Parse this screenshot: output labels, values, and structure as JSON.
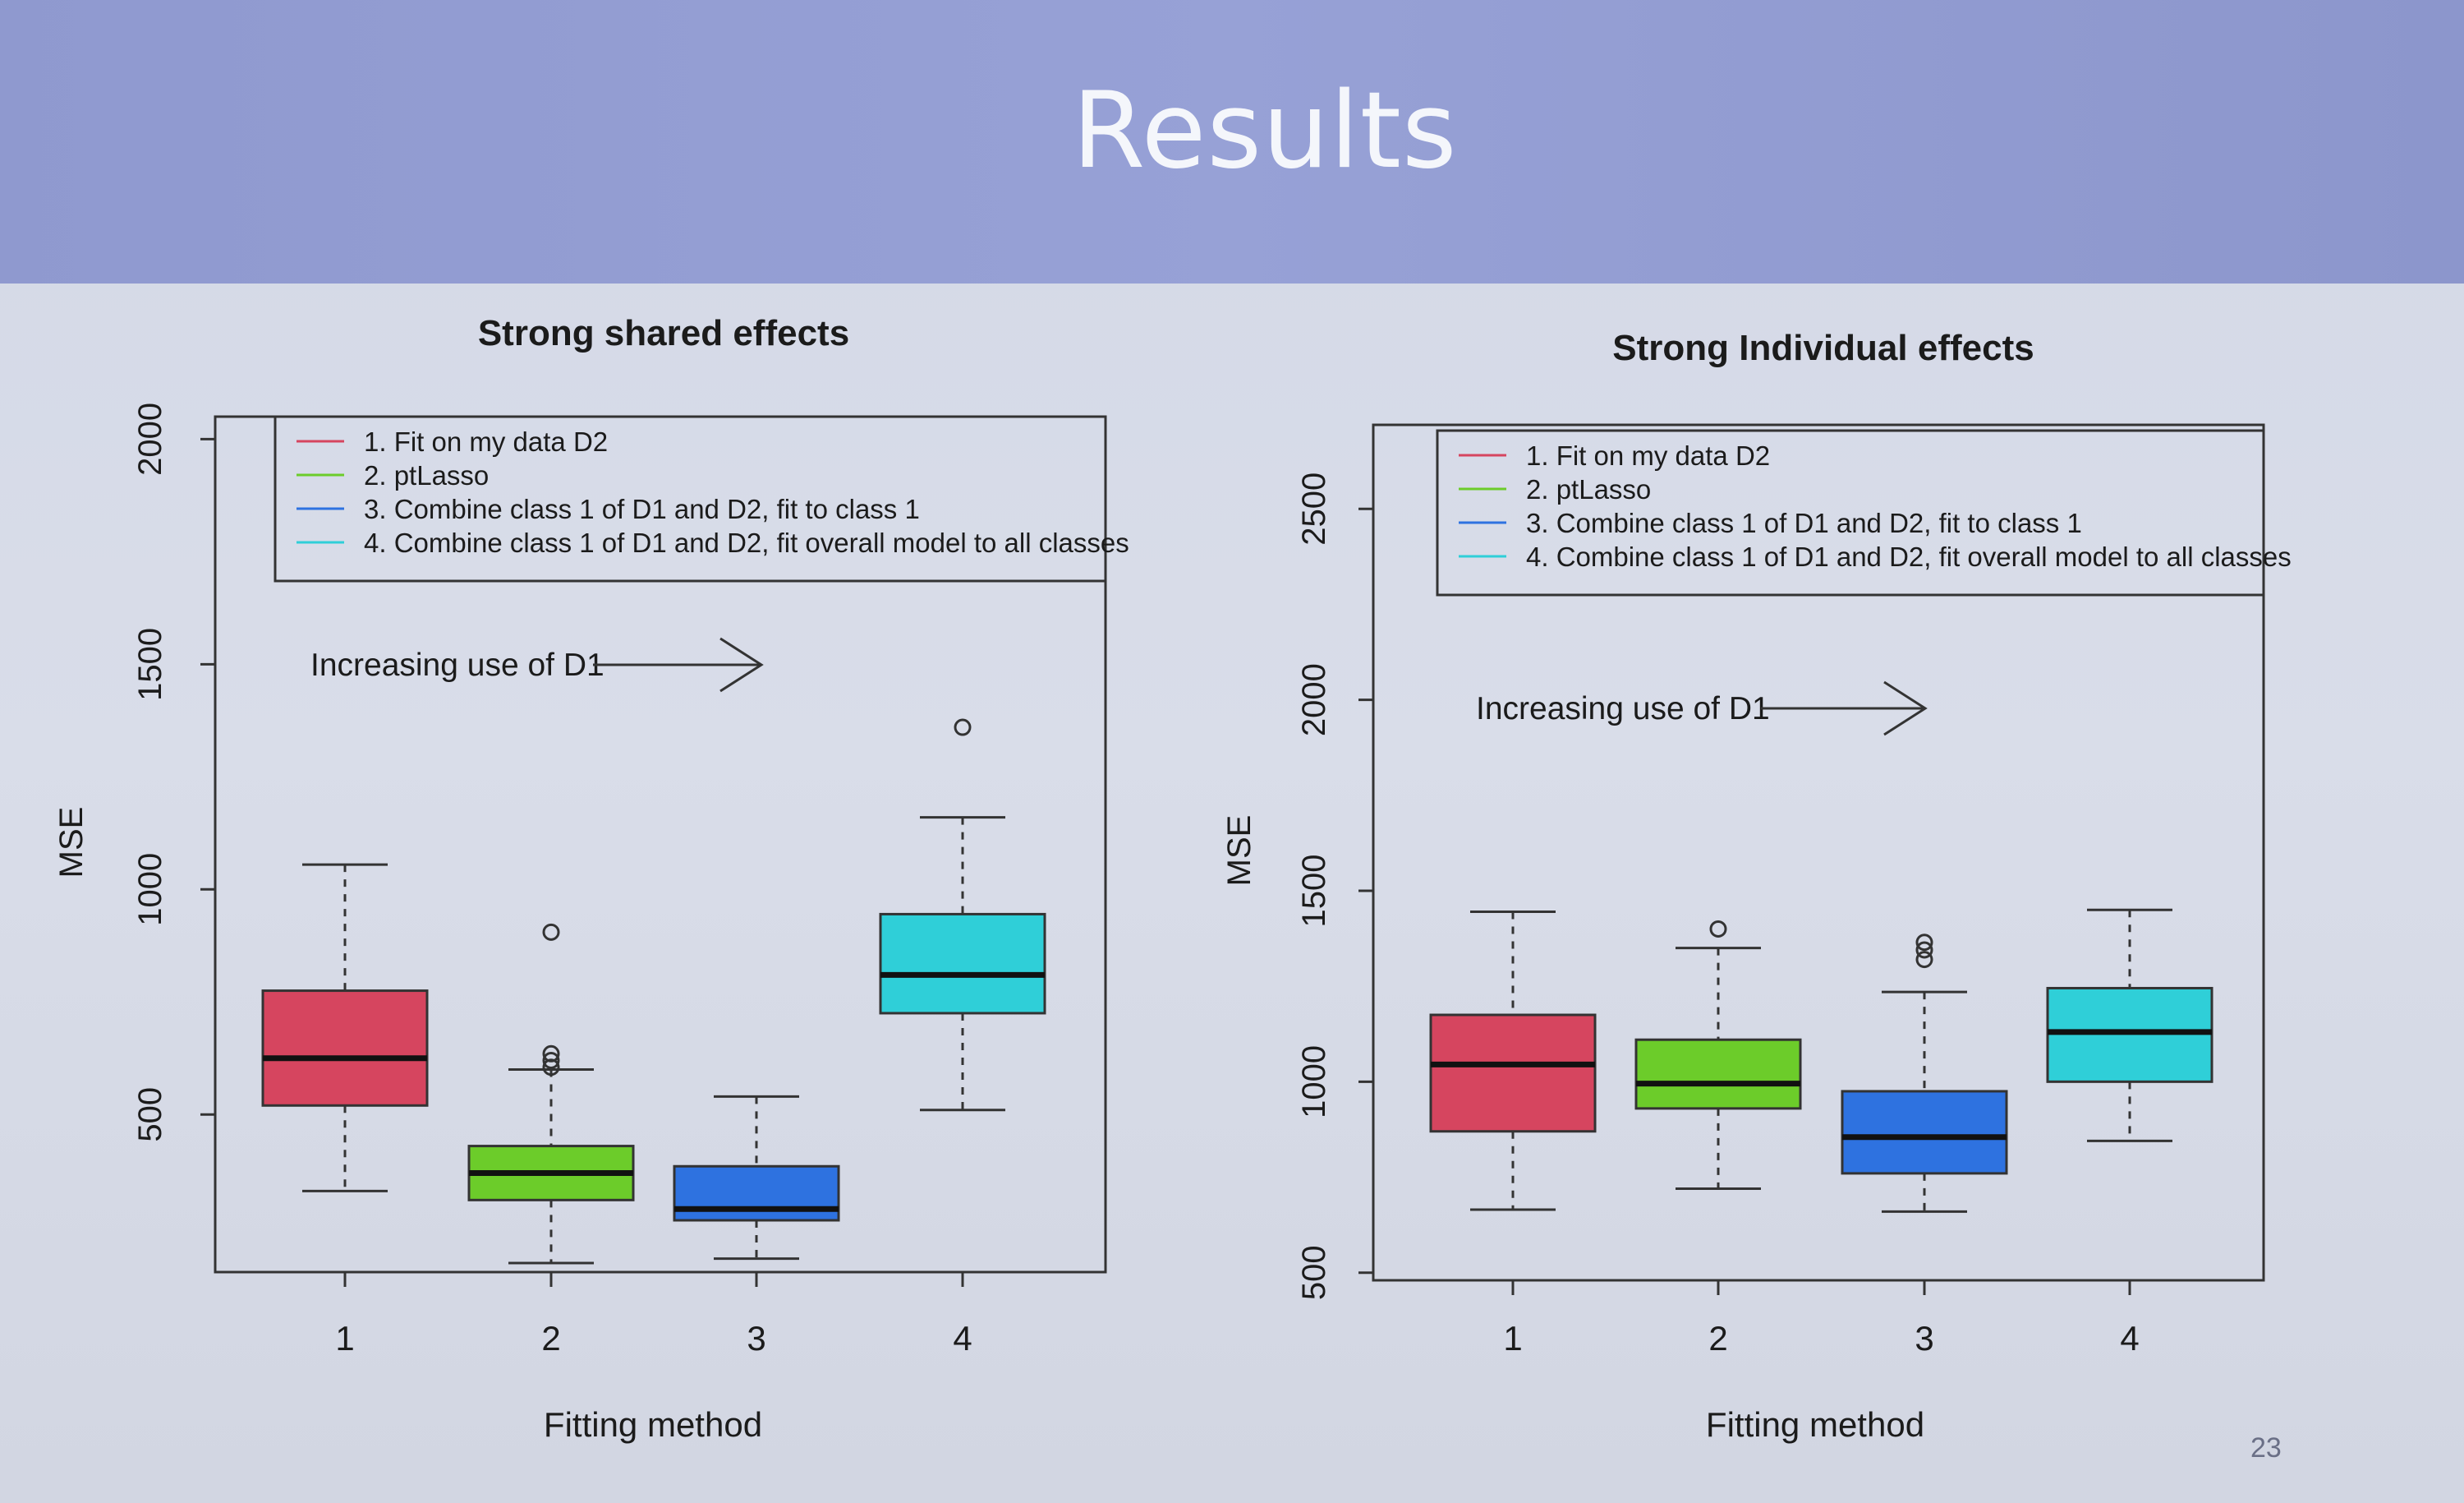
{
  "slide": {
    "title": "Results",
    "page_number": "23"
  },
  "chart_data": [
    {
      "type": "box",
      "title": "Strong shared effects",
      "xlabel": "Fitting method",
      "ylabel": "MSE",
      "categories": [
        "1",
        "2",
        "3",
        "4"
      ],
      "yticks": [
        500,
        1000,
        1500,
        2000
      ],
      "ylim": [
        150,
        2050
      ],
      "annotation": "Increasing use of D1",
      "legend": {
        "placement": "top-right",
        "entries": [
          {
            "label": "1. Fit on my data D2",
            "color": "#d6455f"
          },
          {
            "label": "2. ptLasso",
            "color": "#6ccc2a"
          },
          {
            "label": "3. Combine class 1 of D1 and D2, fit to class 1",
            "color": "#2e72e0"
          },
          {
            "label": "4. Combine class 1 of D1 and D2, fit overall model to all classes",
            "color": "#2fcfd8"
          }
        ]
      },
      "boxes": [
        {
          "x": "1",
          "color": "#d6455f",
          "whisker_low": 330,
          "q1": 520,
          "median": 625,
          "q3": 775,
          "whisker_high": 1055,
          "outliers": []
        },
        {
          "x": "2",
          "color": "#6ccc2a",
          "whisker_low": 170,
          "q1": 310,
          "median": 370,
          "q3": 430,
          "whisker_high": 600,
          "outliers": [
            605,
            620,
            635,
            905
          ]
        },
        {
          "x": "3",
          "color": "#2e72e0",
          "whisker_low": 180,
          "q1": 265,
          "median": 290,
          "q3": 385,
          "whisker_high": 540,
          "outliers": []
        },
        {
          "x": "4",
          "color": "#2fcfd8",
          "whisker_low": 510,
          "q1": 725,
          "median": 810,
          "q3": 945,
          "whisker_high": 1160,
          "outliers": [
            1360
          ]
        }
      ]
    },
    {
      "type": "box",
      "title": "Strong Individual effects",
      "xlabel": "Fitting method",
      "ylabel": "MSE",
      "categories": [
        "1",
        "2",
        "3",
        "4"
      ],
      "yticks": [
        500,
        1000,
        1500,
        2000,
        2500
      ],
      "ylim": [
        480,
        2720
      ],
      "annotation": "Increasing use of D1",
      "legend": {
        "placement": "top-right",
        "entries": [
          {
            "label": "1. Fit on my data D2",
            "color": "#d6455f"
          },
          {
            "label": "2. ptLasso",
            "color": "#6ccc2a"
          },
          {
            "label": "3. Combine class 1 of D1 and D2, fit to class 1",
            "color": "#2e72e0"
          },
          {
            "label": "4. Combine class 1 of D1 and D2, fit overall model to all classes",
            "color": "#2fcfd8"
          }
        ]
      },
      "boxes": [
        {
          "x": "1",
          "color": "#d6455f",
          "whisker_low": 665,
          "q1": 870,
          "median": 1045,
          "q3": 1175,
          "whisker_high": 1445,
          "outliers": []
        },
        {
          "x": "2",
          "color": "#6ccc2a",
          "whisker_low": 720,
          "q1": 930,
          "median": 995,
          "q3": 1110,
          "whisker_high": 1350,
          "outliers": [
            1400
          ]
        },
        {
          "x": "3",
          "color": "#2e72e0",
          "whisker_low": 660,
          "q1": 760,
          "median": 855,
          "q3": 975,
          "whisker_high": 1235,
          "outliers": [
            1320,
            1345,
            1365
          ]
        },
        {
          "x": "4",
          "color": "#2fcfd8",
          "whisker_low": 845,
          "q1": 1000,
          "median": 1130,
          "q3": 1245,
          "whisker_high": 1450,
          "outliers": []
        }
      ]
    }
  ]
}
